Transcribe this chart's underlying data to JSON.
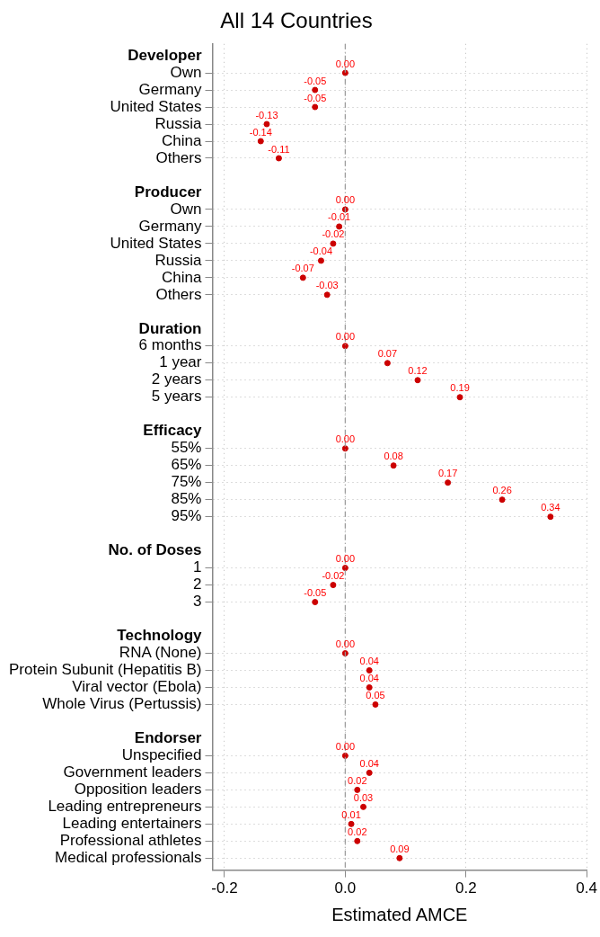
{
  "chart_data": {
    "type": "scatter",
    "orientation": "horizontal",
    "title": "All 14 Countries",
    "xlabel": "Estimated AMCE",
    "categories": [
      "Developer",
      "Own",
      "Germany",
      "United States",
      "Russia",
      "China",
      "Others",
      null,
      "Producer",
      "Own",
      "Germany",
      "United States",
      "Russia",
      "China",
      "Others",
      null,
      "Duration",
      "6 months",
      "1 year",
      "2 years",
      "5 years",
      null,
      "Efficacy",
      "55%",
      "65%",
      "75%",
      "85%",
      "95%",
      null,
      "No. of Doses",
      "1",
      "2",
      "3",
      null,
      "Technology",
      "RNA (None)",
      "Protein Subunit (Hepatitis B)",
      "Viral vector (Ebola)",
      "Whole Virus (Pertussis)",
      null,
      "Endorser",
      "Unspecified",
      "Government leaders",
      "Opposition leaders",
      "Leading entrepreneurs",
      "Leading entertainers",
      "Professional athletes",
      "Medical professionals"
    ],
    "series": [
      {
        "color": "#cc0000",
        "values": [
          null,
          0,
          -0.05,
          -0.05,
          -0.13,
          -0.14,
          -0.11,
          null,
          null,
          0,
          -0.01,
          -0.02,
          -0.04,
          -0.07,
          -0.03,
          null,
          null,
          0,
          0.07,
          0.12,
          0.19,
          null,
          null,
          0,
          0.08,
          0.17,
          0.26,
          0.34,
          null,
          null,
          0,
          -0.02,
          -0.05,
          null,
          null,
          0,
          0.04,
          0.04,
          0.05,
          null,
          null,
          0,
          0.04,
          0.02,
          0.03,
          0.01,
          0.02,
          0.09
        ],
        "value_labels": [
          null,
          "0.00",
          "-0.05",
          "-0.05",
          "-0.13",
          "-0.14",
          "-0.11",
          null,
          null,
          "0.00",
          "-0.01",
          "-0.02",
          "-0.04",
          "-0.07",
          "-0.03",
          null,
          null,
          "0.00",
          "0.07",
          "0.12",
          "0.19",
          null,
          null,
          "0.00",
          "0.08",
          "0.17",
          "0.26",
          "0.34",
          null,
          null,
          "0.00",
          "-0.02",
          "-0.05",
          null,
          null,
          "0.00",
          "0.04",
          "0.04",
          "0.05",
          null,
          null,
          "0.00",
          "0.04",
          "0.02",
          "0.03",
          "0.01",
          "0.02",
          "0.09"
        ]
      }
    ],
    "xlim": [
      -0.22,
      0.4
    ],
    "xticks": [
      -0.2,
      {
        "value": 0,
        "label": "0.0"
      },
      0.2,
      0.4
    ],
    "grid": true,
    "marker": "circle",
    "ref_lines": [
      {
        "axis": "x",
        "value": 0,
        "color": "#999999",
        "line_style": "dashdot"
      }
    ]
  }
}
